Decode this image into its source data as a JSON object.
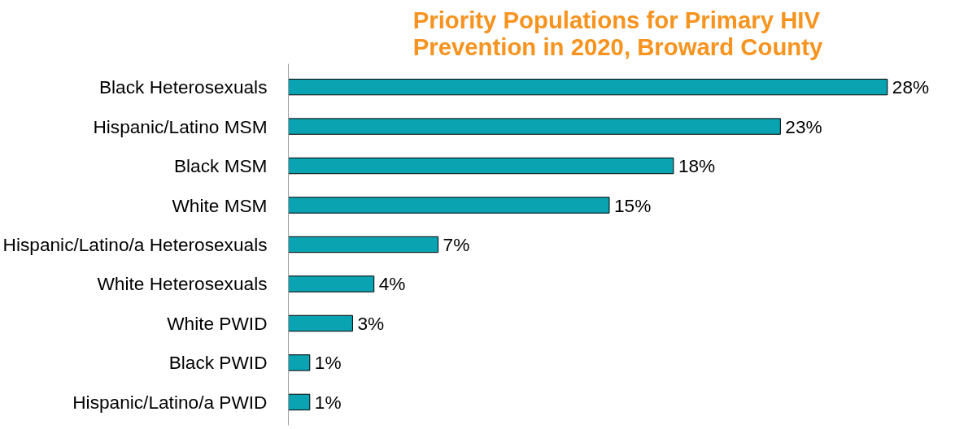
{
  "chart_data": {
    "type": "bar",
    "orientation": "horizontal",
    "title": "Priority Populations for Primary HIV\nPrevention in 2020, Broward County",
    "categories": [
      "Black Heterosexuals",
      "Hispanic/Latino MSM",
      "Black MSM",
      "White MSM",
      "Hispanic/Latino/a Heterosexuals",
      "White Heterosexuals",
      "White PWID",
      "Black PWID",
      "Hispanic/Latino/a PWID"
    ],
    "values": [
      28,
      23,
      18,
      15,
      7,
      4,
      3,
      1,
      1
    ],
    "value_labels": [
      "28%",
      "23%",
      "18%",
      "15%",
      "7%",
      "4%",
      "3%",
      "1%",
      "1%"
    ],
    "color": "#0aa3b2",
    "grid": false
  }
}
